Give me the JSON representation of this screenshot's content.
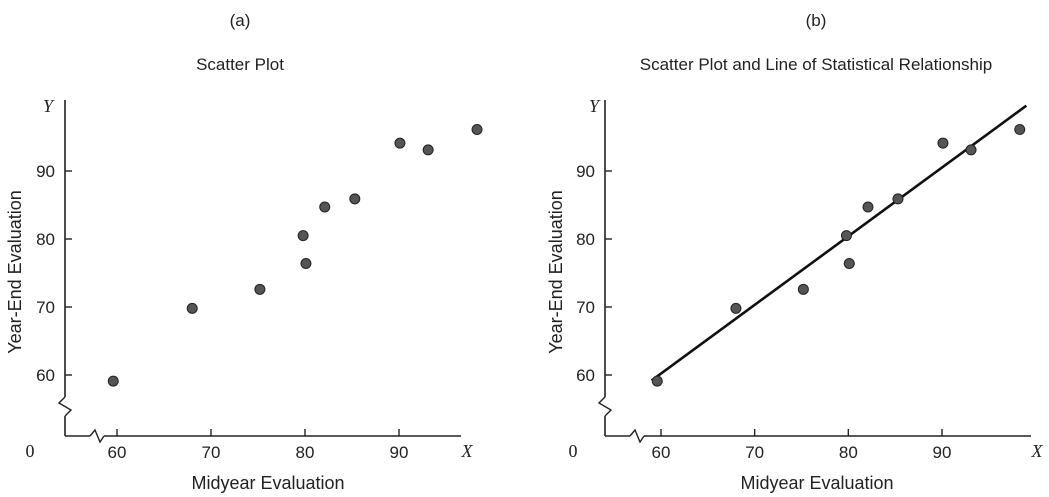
{
  "chart_data": [
    {
      "type": "scatter",
      "panel_label": "(a)",
      "title": "Scatter Plot",
      "xlabel": "Midyear Evaluation",
      "ylabel": "Year-End Evaluation",
      "x_axis_letter": "X",
      "y_axis_letter": "Y",
      "origin_label": "0",
      "x_ticks": [
        60,
        70,
        80,
        90
      ],
      "y_ticks": [
        60,
        70,
        80,
        90
      ],
      "xlim": [
        55,
        99
      ],
      "ylim": [
        55,
        98
      ],
      "axis_breaks": true,
      "grid": false,
      "x": [
        59.6,
        68,
        75.2,
        79.8,
        80.1,
        82.1,
        85.3,
        90.1,
        93.1,
        98.3
      ],
      "y": [
        59.1,
        69.8,
        72.6,
        80.5,
        76.4,
        84.7,
        85.9,
        94.1,
        93.1,
        96.1
      ]
    },
    {
      "type": "scatter",
      "panel_label": "(b)",
      "title": "Scatter Plot and Line of Statistical Relationship",
      "xlabel": "Midyear Evaluation",
      "ylabel": "Year-End Evaluation",
      "x_axis_letter": "X",
      "y_axis_letter": "Y",
      "origin_label": "0",
      "x_ticks": [
        60,
        70,
        80,
        90
      ],
      "y_ticks": [
        60,
        70,
        80,
        90
      ],
      "xlim": [
        55,
        99
      ],
      "ylim": [
        55,
        98
      ],
      "axis_breaks": true,
      "grid": false,
      "x": [
        59.6,
        68,
        75.2,
        79.8,
        80.1,
        82.1,
        85.3,
        90.1,
        93.1,
        98.3
      ],
      "y": [
        59.1,
        69.8,
        72.6,
        80.5,
        76.4,
        84.7,
        85.9,
        94.1,
        93.1,
        96.1
      ],
      "fit_line": {
        "x": [
          59,
          99
        ],
        "y": [
          59.2,
          99.6
        ]
      }
    }
  ]
}
